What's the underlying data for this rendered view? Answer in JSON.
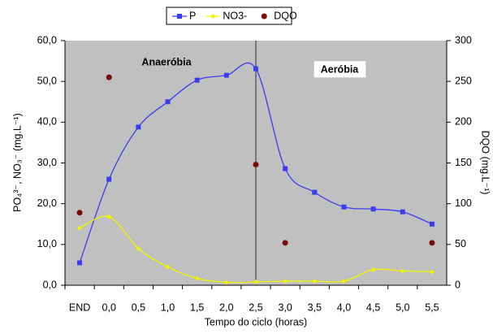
{
  "chart_data": {
    "type": "line",
    "xlabel": "Tempo do ciclo (horas)",
    "ylabel": "PO₄³⁻, NO₃⁻ (mg.L⁻¹)",
    "y2label": "DQO (mg.L⁻¹)",
    "annotations": [
      "Anaeróbia",
      "Aeróbia"
    ],
    "categories": [
      "END",
      "0,0",
      "0,5",
      "1,0",
      "1,5",
      "2,0",
      "2,5",
      "3,0",
      "3,5",
      "4,0",
      "4,5",
      "5,0",
      "5,5"
    ],
    "series": [
      {
        "name": "P",
        "color": "#3b3bf0",
        "marker": "square",
        "line": true,
        "values": [
          5.5,
          26,
          38.8,
          45,
          50.3,
          51.5,
          53.1,
          28.6,
          22.8,
          19.2,
          18.7,
          18.0,
          15.0
        ]
      },
      {
        "name": "NO3-",
        "color": "#f2f200",
        "marker": "diamond",
        "line": true,
        "values": [
          14,
          16.8,
          9.0,
          4.5,
          1.7,
          0.7,
          0.8,
          1.0,
          1.0,
          1.0,
          3.8,
          3.5,
          3.3
        ]
      },
      {
        "name": "DQO",
        "color": "#7a0a0a",
        "marker": "circle",
        "line": false,
        "axis": "y2",
        "values": [
          89,
          255,
          null,
          null,
          null,
          null,
          148,
          52,
          null,
          null,
          null,
          null,
          52
        ]
      }
    ],
    "ylim": [
      0,
      60
    ],
    "yticks": [
      {
        "value": 0,
        "label": "0,0"
      },
      {
        "value": 10,
        "label": "10,0"
      },
      {
        "value": 20,
        "label": "20,0"
      },
      {
        "value": 30,
        "label": "30,0"
      },
      {
        "value": 40,
        "label": "40,0"
      },
      {
        "value": 50,
        "label": "50,0"
      },
      {
        "value": 60,
        "label": "60,0"
      }
    ],
    "y2lim": [
      0,
      300
    ],
    "y2ticks": [
      0,
      50,
      100,
      150,
      200,
      250,
      300
    ],
    "legend": "top",
    "plot_background": "#c0c0c0"
  }
}
